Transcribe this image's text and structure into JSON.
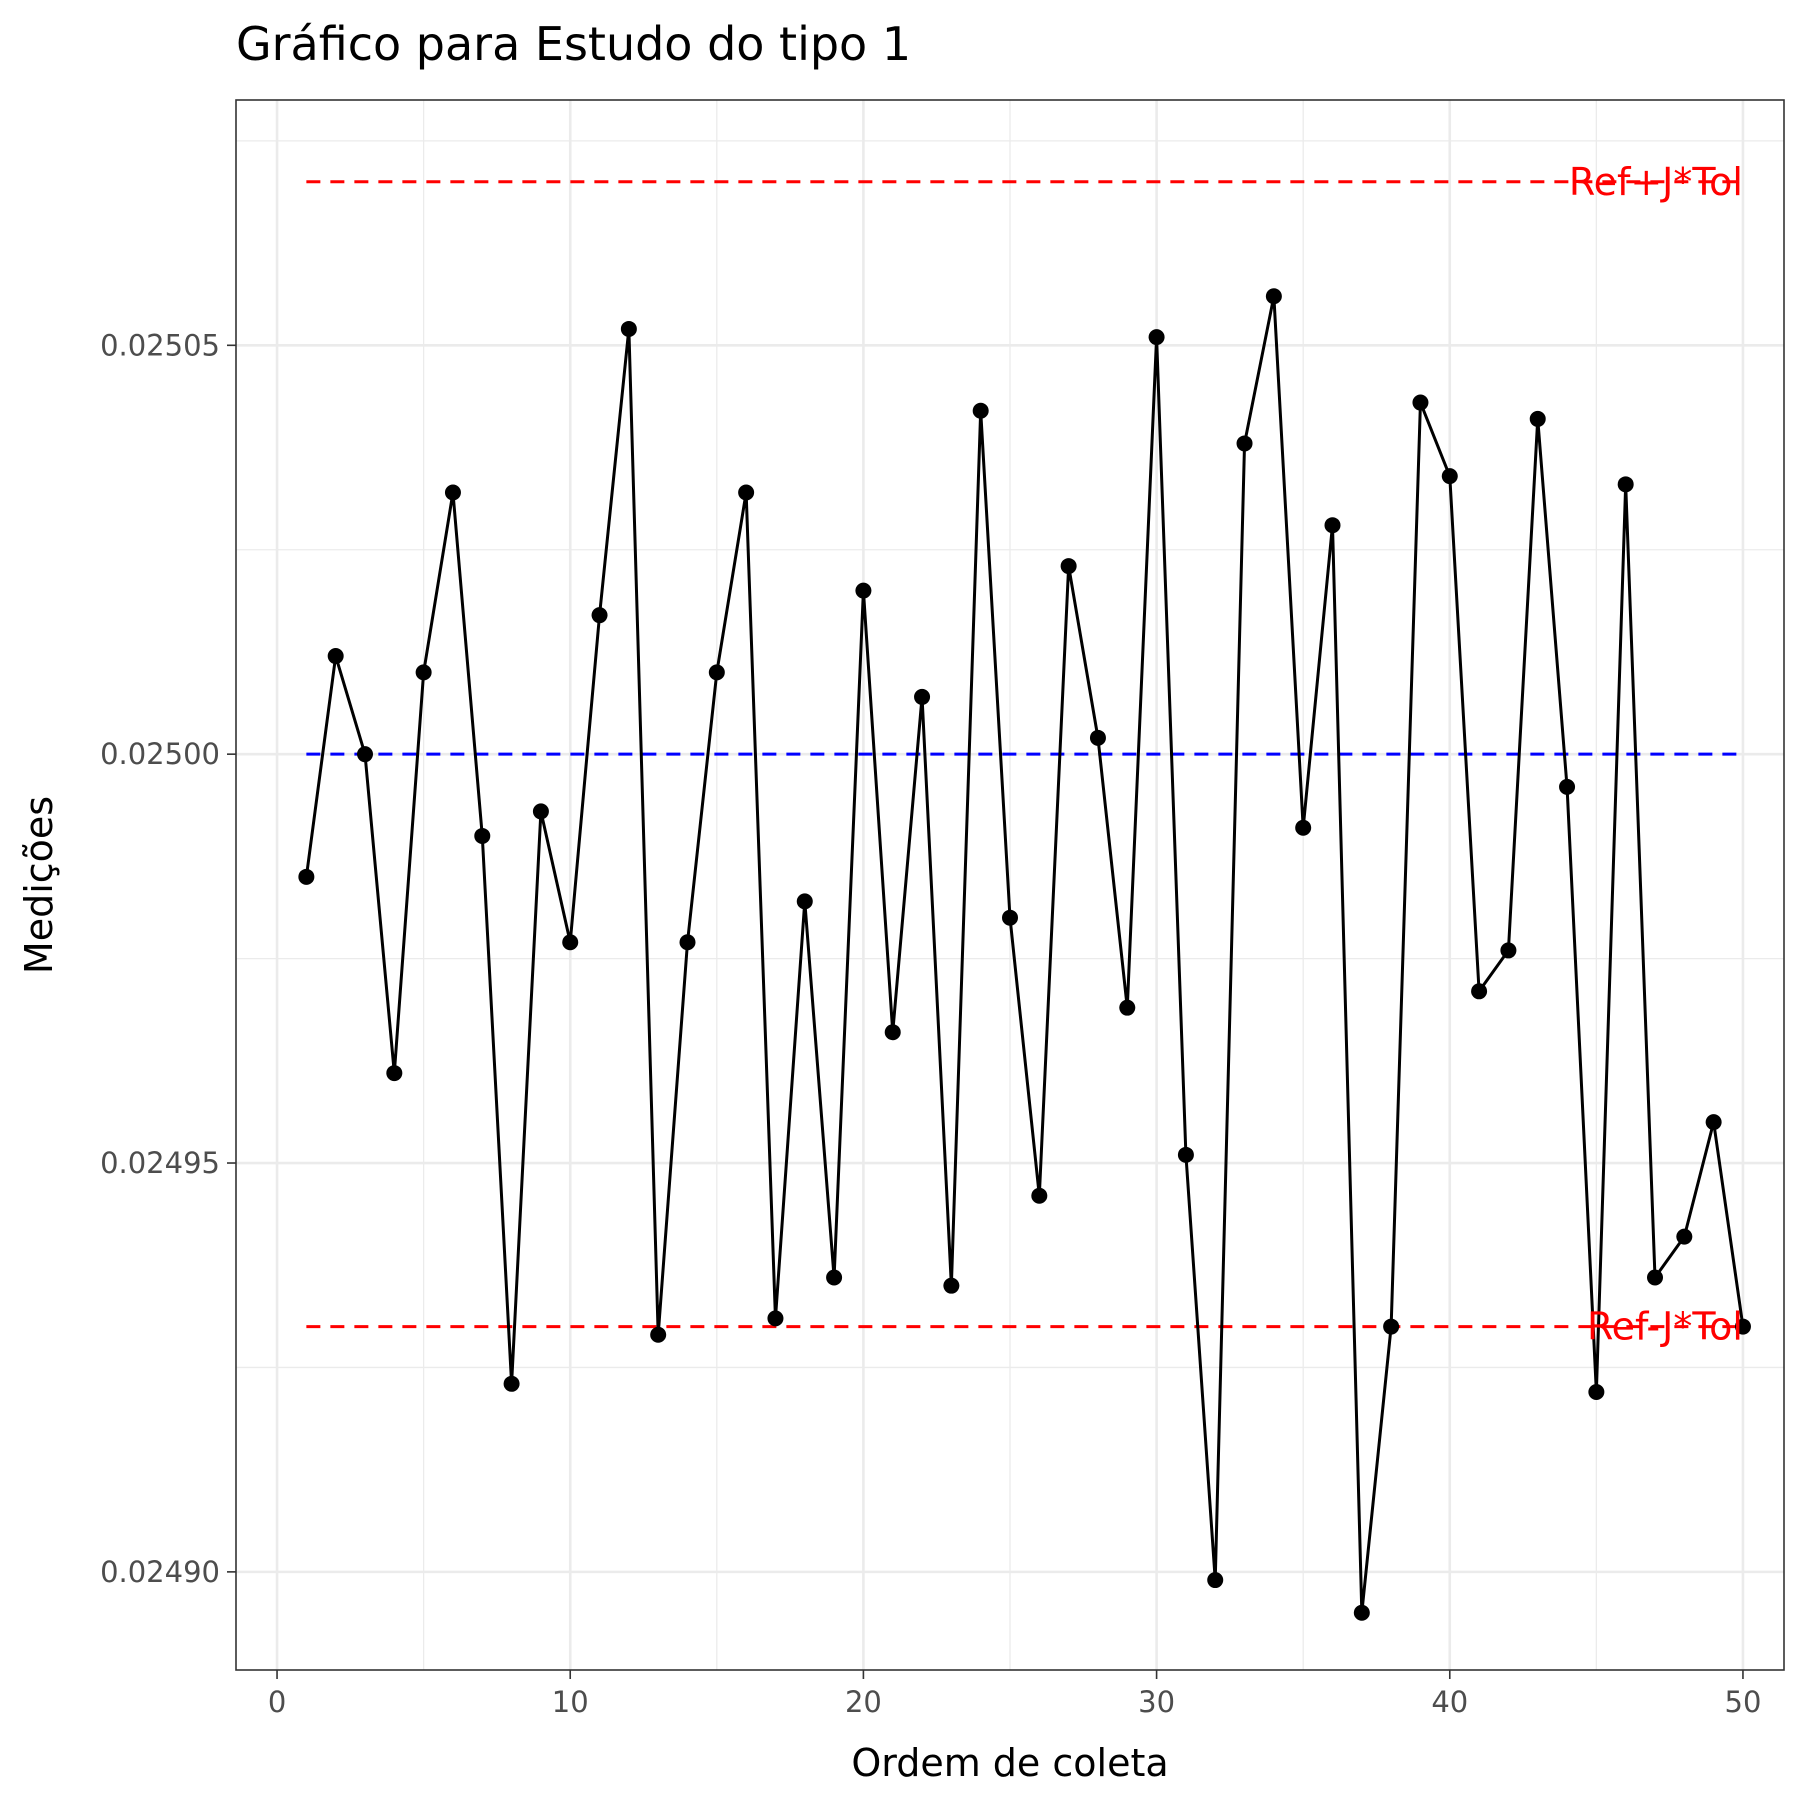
{
  "chart_data": {
    "type": "line",
    "title": "Gráfico para Estudo do tipo 1",
    "xlabel": "Ordem de coleta",
    "ylabel": "Medições",
    "xlim": [
      -1.4,
      51.4
    ],
    "ylim": [
      0.024888,
      0.02508
    ],
    "x_ticks": [
      0,
      10,
      20,
      30,
      40,
      50
    ],
    "x_tick_labels": [
      "0",
      "10",
      "20",
      "30",
      "40",
      "50"
    ],
    "y_ticks": [
      0.0249,
      0.02495,
      0.025,
      0.02505
    ],
    "y_tick_labels": [
      "0.02490",
      "0.02495",
      "0.02500",
      "0.02505"
    ],
    "grid": true,
    "legend": "none",
    "series": [
      {
        "color": "#000000",
        "markers": true,
        "x": [
          1,
          2,
          3,
          4,
          5,
          6,
          7,
          8,
          9,
          10,
          11,
          12,
          13,
          14,
          15,
          16,
          17,
          18,
          19,
          20,
          21,
          22,
          23,
          24,
          25,
          26,
          27,
          28,
          29,
          30,
          31,
          32,
          33,
          34,
          35,
          36,
          37,
          38,
          39,
          40,
          41,
          42,
          43,
          44,
          45,
          46,
          47,
          48,
          49,
          50
        ],
        "values": [
          0.024985,
          0.025012,
          0.025,
          0.024961,
          0.02501,
          0.025032,
          0.02499,
          0.024923,
          0.024993,
          0.024977,
          0.025017,
          0.025052,
          0.024929,
          0.024977,
          0.02501,
          0.025032,
          0.024931,
          0.024982,
          0.024936,
          0.02502,
          0.024966,
          0.025007,
          0.024935,
          0.025042,
          0.02498,
          0.024946,
          0.025023,
          0.025002,
          0.024969,
          0.025051,
          0.024951,
          0.024899,
          0.025038,
          0.025056,
          0.024991,
          0.025028,
          0.024895,
          0.02493,
          0.025043,
          0.025034,
          0.024971,
          0.024976,
          0.025041,
          0.024996,
          0.024922,
          0.025033,
          0.024936,
          0.024941,
          0.024955,
          0.02493
        ]
      }
    ],
    "reference_lines": [
      {
        "label": "Ref+J*Tol",
        "value": 0.02507,
        "color": "#ff0000",
        "style": "dashed",
        "x_range": [
          1,
          50
        ]
      },
      {
        "label": "",
        "value": 0.025,
        "color": "#0000ff",
        "style": "dashed",
        "x_range": [
          1,
          50
        ]
      },
      {
        "label": "Ref-J*Tol",
        "value": 0.02493,
        "color": "#ff0000",
        "style": "dashed",
        "x_range": [
          1,
          50
        ]
      }
    ]
  }
}
